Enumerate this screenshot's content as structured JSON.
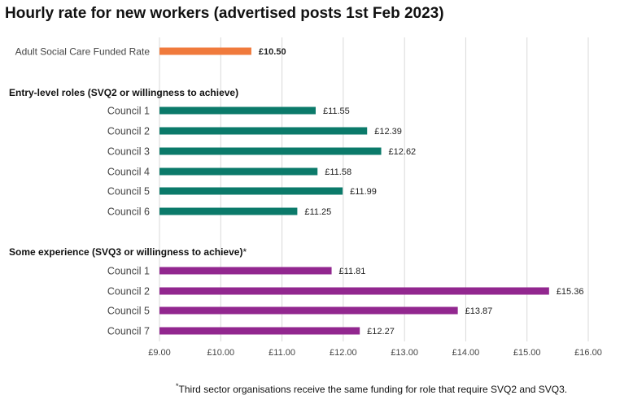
{
  "chart_data": {
    "type": "bar",
    "orientation": "horizontal",
    "title": "Hourly rate for new workers (advertised posts 1st Feb 2023)",
    "xlim": [
      9.0,
      16.0
    ],
    "xticks": [
      9,
      10,
      11,
      12,
      13,
      14,
      15,
      16
    ],
    "tick_labels": [
      "£9.00",
      "£10.00",
      "£11.00",
      "£12.00",
      "£13.00",
      "£14.00",
      "£15.00",
      "£16.00"
    ],
    "grid": "vertical",
    "colors": {
      "funded": "#f07a3c",
      "entry": "#0b7a6a",
      "experience": "#92278f"
    },
    "groups": [
      {
        "heading": "",
        "color": "funded",
        "bars": [
          {
            "category": "Adult Social Care Funded Rate",
            "value": 10.5,
            "label": "£10.50"
          }
        ]
      },
      {
        "heading": "Entry-level roles (SVQ2 or willingness to achieve)",
        "heading_suffix": "",
        "color": "entry",
        "bars": [
          {
            "category": "Council 1",
            "value": 11.55,
            "label": "£11.55"
          },
          {
            "category": "Council 2",
            "value": 12.39,
            "label": "£12.39"
          },
          {
            "category": "Council 3",
            "value": 12.62,
            "label": "£12.62"
          },
          {
            "category": "Council 4",
            "value": 11.58,
            "label": "£11.58"
          },
          {
            "category": "Council 5",
            "value": 11.99,
            "label": "£11.99"
          },
          {
            "category": "Council 6",
            "value": 11.25,
            "label": "£11.25"
          }
        ]
      },
      {
        "heading": "Some experience (SVQ3 or willingness to achieve)",
        "heading_suffix": "*",
        "color": "experience",
        "bars": [
          {
            "category": "Council 1",
            "value": 11.81,
            "label": "£11.81"
          },
          {
            "category": "Council 2",
            "value": 15.36,
            "label": "£15.36"
          },
          {
            "category": "Council 5",
            "value": 13.87,
            "label": "£13.87"
          },
          {
            "category": "Council 7",
            "value": 12.27,
            "label": "£12.27"
          }
        ]
      }
    ]
  },
  "footnote": {
    "marker": "*",
    "text": "Third sector organisations receive the same funding for role that require SVQ2 and SVQ3."
  }
}
